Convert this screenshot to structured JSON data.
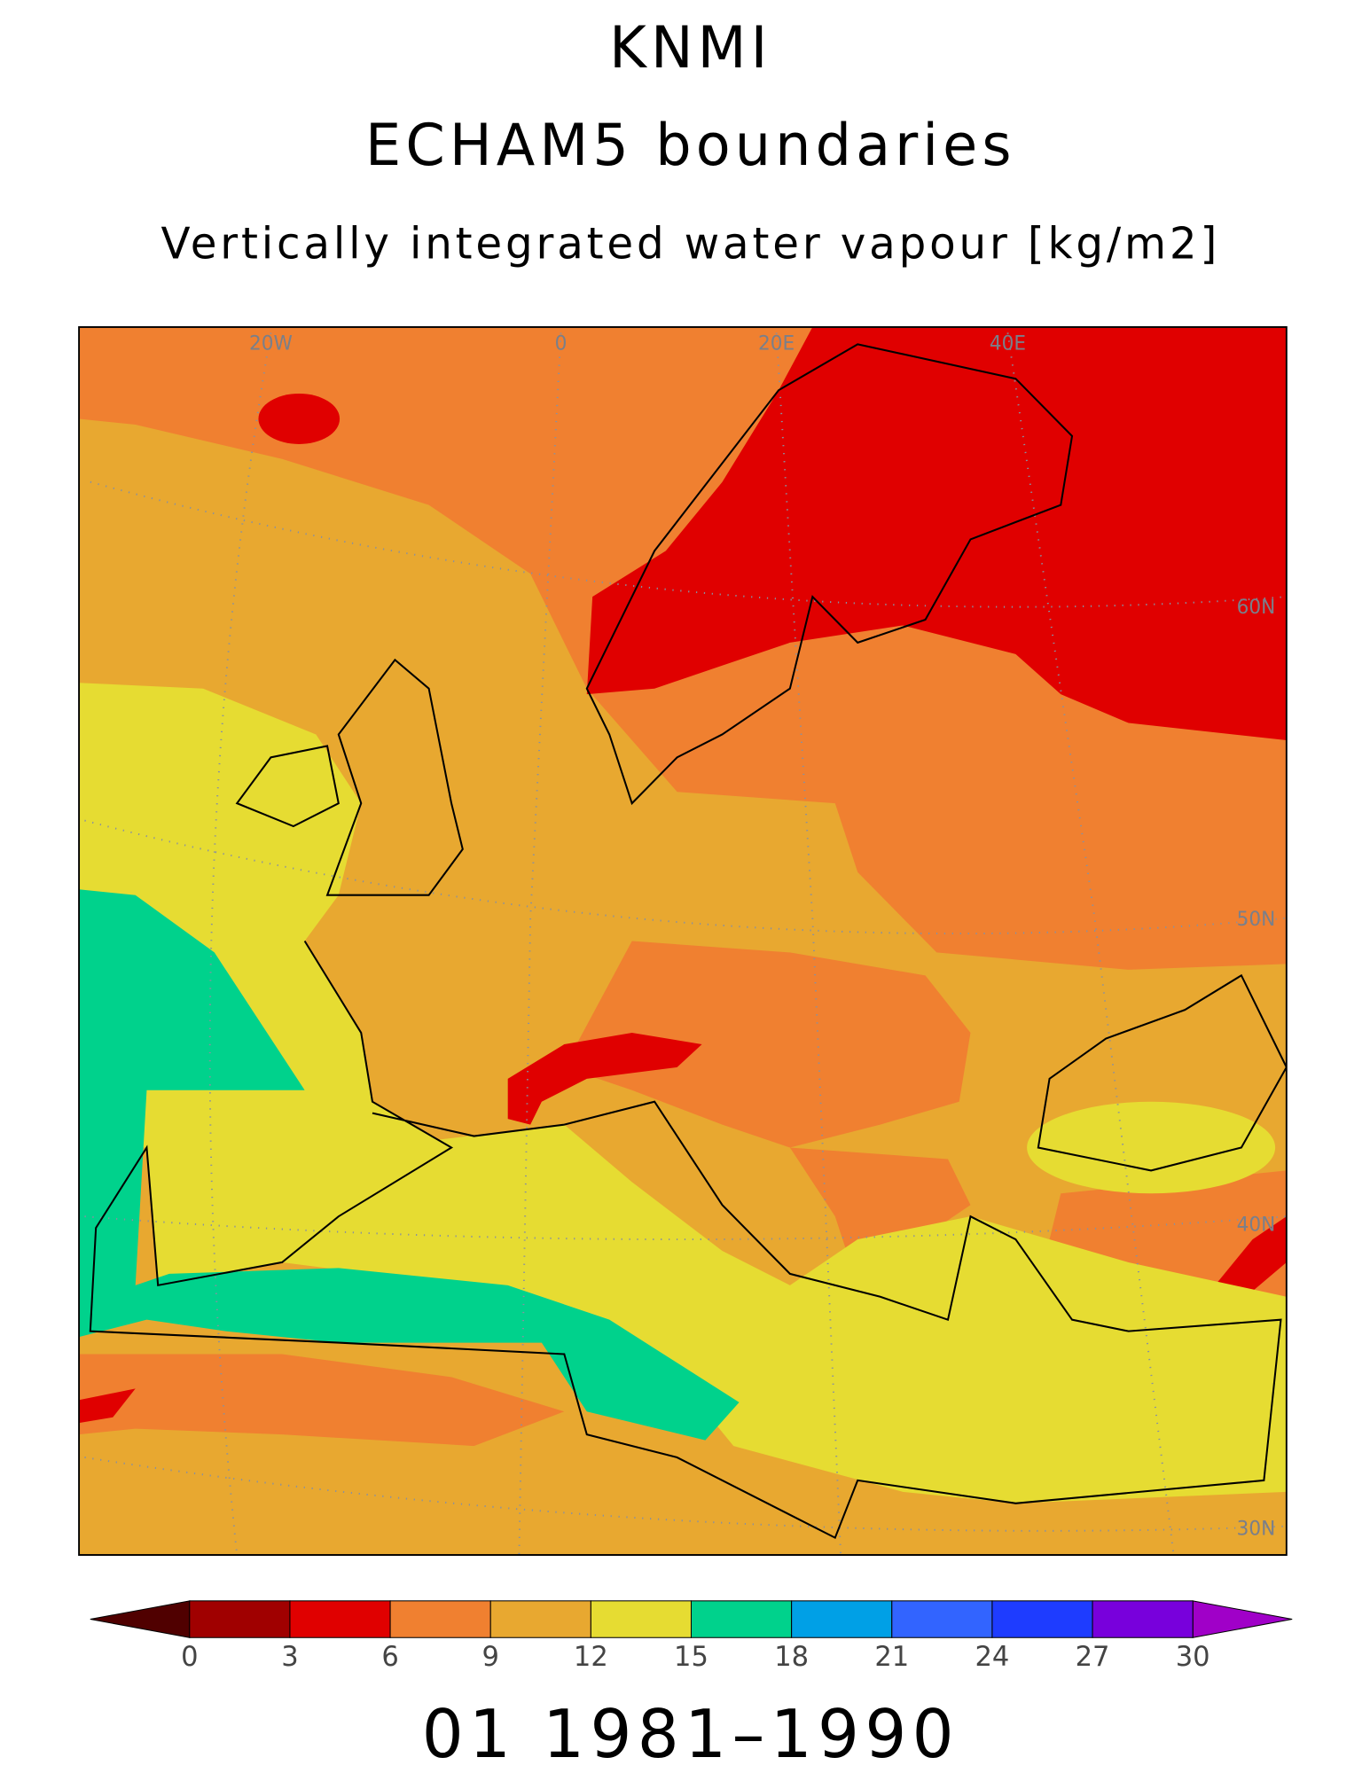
{
  "title": "KNMI",
  "subtitle": "ECHAM5 boundaries",
  "variable": "Vertically integrated water vapour [kg/m2]",
  "map": {
    "lon_labels": [
      "20W",
      "0",
      "20E",
      "40E"
    ],
    "lat_labels": [
      "60N",
      "50N",
      "40N",
      "30N"
    ]
  },
  "colorbar": {
    "levels": [
      0,
      3,
      6,
      9,
      12,
      15,
      18,
      21,
      24,
      27,
      30
    ],
    "colors": [
      "#500000",
      "#a00000",
      "#e00000",
      "#f08030",
      "#e8a830",
      "#e6dc32",
      "#00d28c",
      "#00a0e6",
      "#3264ff",
      "#1e3cff",
      "#7800dc",
      "#a000c8"
    ]
  },
  "footer": "01 1981–1990"
}
